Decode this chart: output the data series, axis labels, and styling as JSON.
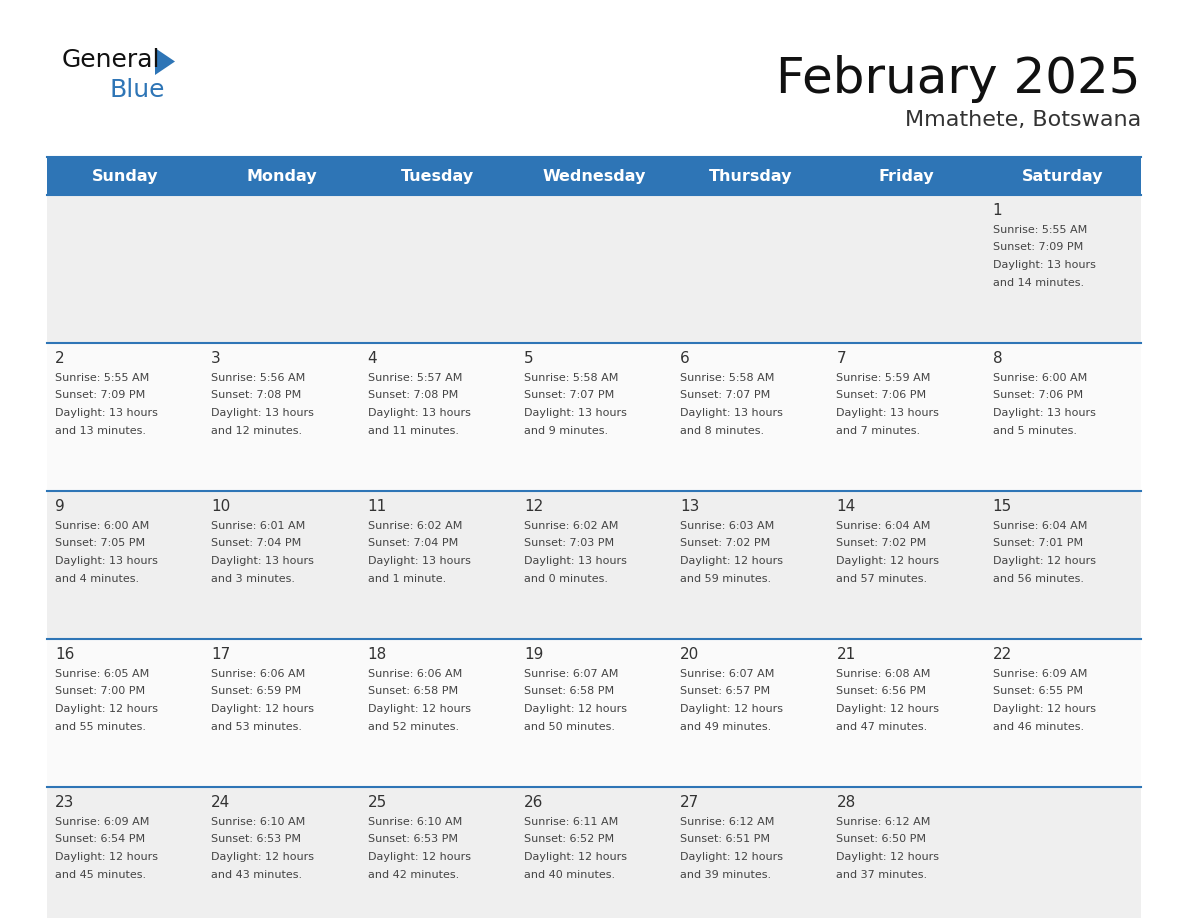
{
  "title": "February 2025",
  "subtitle": "Mmathete, Botswana",
  "header_bg": "#2E75B6",
  "header_text_color": "#FFFFFF",
  "text_color": "#444444",
  "day_number_color": "#333333",
  "divider_color": "#2E75B6",
  "days_of_week": [
    "Sunday",
    "Monday",
    "Tuesday",
    "Wednesday",
    "Thursday",
    "Friday",
    "Saturday"
  ],
  "calendar_data": [
    [
      null,
      null,
      null,
      null,
      null,
      null,
      {
        "day": 1,
        "sunrise": "5:55 AM",
        "sunset": "7:09 PM",
        "daylight": "13 hours and 14 minutes"
      }
    ],
    [
      {
        "day": 2,
        "sunrise": "5:55 AM",
        "sunset": "7:09 PM",
        "daylight": "13 hours and 13 minutes"
      },
      {
        "day": 3,
        "sunrise": "5:56 AM",
        "sunset": "7:08 PM",
        "daylight": "13 hours and 12 minutes"
      },
      {
        "day": 4,
        "sunrise": "5:57 AM",
        "sunset": "7:08 PM",
        "daylight": "13 hours and 11 minutes"
      },
      {
        "day": 5,
        "sunrise": "5:58 AM",
        "sunset": "7:07 PM",
        "daylight": "13 hours and 9 minutes"
      },
      {
        "day": 6,
        "sunrise": "5:58 AM",
        "sunset": "7:07 PM",
        "daylight": "13 hours and 8 minutes"
      },
      {
        "day": 7,
        "sunrise": "5:59 AM",
        "sunset": "7:06 PM",
        "daylight": "13 hours and 7 minutes"
      },
      {
        "day": 8,
        "sunrise": "6:00 AM",
        "sunset": "7:06 PM",
        "daylight": "13 hours and 5 minutes"
      }
    ],
    [
      {
        "day": 9,
        "sunrise": "6:00 AM",
        "sunset": "7:05 PM",
        "daylight": "13 hours and 4 minutes"
      },
      {
        "day": 10,
        "sunrise": "6:01 AM",
        "sunset": "7:04 PM",
        "daylight": "13 hours and 3 minutes"
      },
      {
        "day": 11,
        "sunrise": "6:02 AM",
        "sunset": "7:04 PM",
        "daylight": "13 hours and 1 minute"
      },
      {
        "day": 12,
        "sunrise": "6:02 AM",
        "sunset": "7:03 PM",
        "daylight": "13 hours and 0 minutes"
      },
      {
        "day": 13,
        "sunrise": "6:03 AM",
        "sunset": "7:02 PM",
        "daylight": "12 hours and 59 minutes"
      },
      {
        "day": 14,
        "sunrise": "6:04 AM",
        "sunset": "7:02 PM",
        "daylight": "12 hours and 57 minutes"
      },
      {
        "day": 15,
        "sunrise": "6:04 AM",
        "sunset": "7:01 PM",
        "daylight": "12 hours and 56 minutes"
      }
    ],
    [
      {
        "day": 16,
        "sunrise": "6:05 AM",
        "sunset": "7:00 PM",
        "daylight": "12 hours and 55 minutes"
      },
      {
        "day": 17,
        "sunrise": "6:06 AM",
        "sunset": "6:59 PM",
        "daylight": "12 hours and 53 minutes"
      },
      {
        "day": 18,
        "sunrise": "6:06 AM",
        "sunset": "6:58 PM",
        "daylight": "12 hours and 52 minutes"
      },
      {
        "day": 19,
        "sunrise": "6:07 AM",
        "sunset": "6:58 PM",
        "daylight": "12 hours and 50 minutes"
      },
      {
        "day": 20,
        "sunrise": "6:07 AM",
        "sunset": "6:57 PM",
        "daylight": "12 hours and 49 minutes"
      },
      {
        "day": 21,
        "sunrise": "6:08 AM",
        "sunset": "6:56 PM",
        "daylight": "12 hours and 47 minutes"
      },
      {
        "day": 22,
        "sunrise": "6:09 AM",
        "sunset": "6:55 PM",
        "daylight": "12 hours and 46 minutes"
      }
    ],
    [
      {
        "day": 23,
        "sunrise": "6:09 AM",
        "sunset": "6:54 PM",
        "daylight": "12 hours and 45 minutes"
      },
      {
        "day": 24,
        "sunrise": "6:10 AM",
        "sunset": "6:53 PM",
        "daylight": "12 hours and 43 minutes"
      },
      {
        "day": 25,
        "sunrise": "6:10 AM",
        "sunset": "6:53 PM",
        "daylight": "12 hours and 42 minutes"
      },
      {
        "day": 26,
        "sunrise": "6:11 AM",
        "sunset": "6:52 PM",
        "daylight": "12 hours and 40 minutes"
      },
      {
        "day": 27,
        "sunrise": "6:12 AM",
        "sunset": "6:51 PM",
        "daylight": "12 hours and 39 minutes"
      },
      {
        "day": 28,
        "sunrise": "6:12 AM",
        "sunset": "6:50 PM",
        "daylight": "12 hours and 37 minutes"
      },
      null
    ]
  ]
}
